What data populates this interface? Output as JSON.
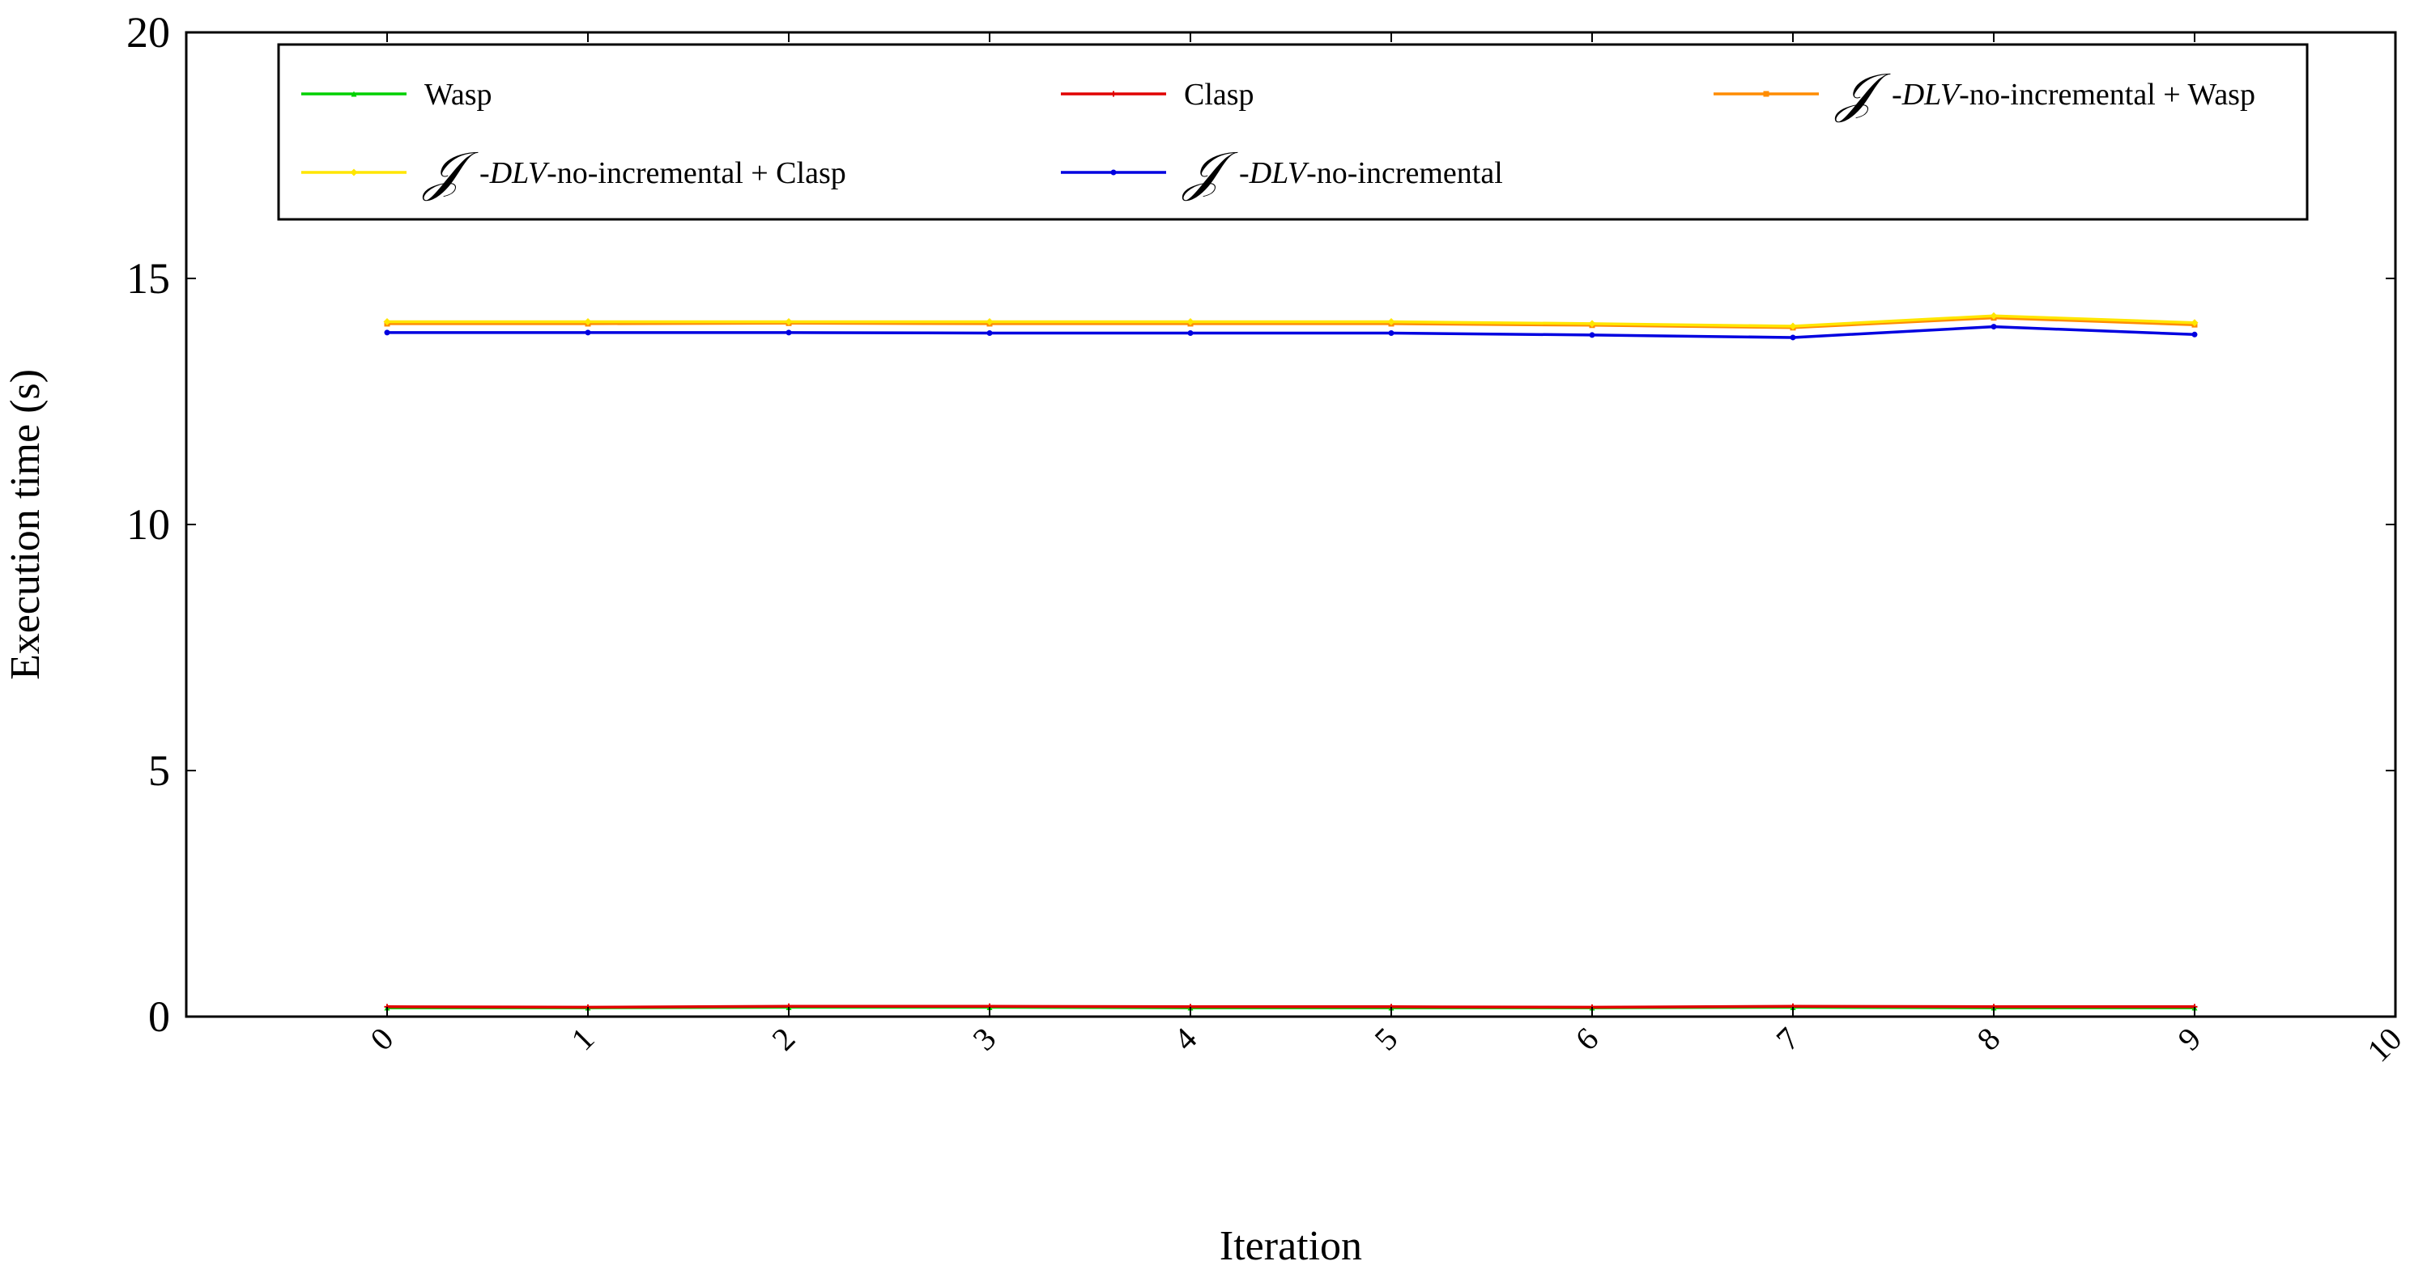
{
  "chart_data": {
    "type": "line",
    "title": "",
    "xlabel": "Iteration",
    "ylabel": "Execution time (s)",
    "xlim": [
      -1,
      10
    ],
    "ylim": [
      0,
      20
    ],
    "x_ticks": [
      "0",
      "1",
      "2",
      "3",
      "4",
      "5",
      "6",
      "7",
      "8",
      "9",
      "10"
    ],
    "y_ticks": [
      "0",
      "5",
      "10",
      "15",
      "20"
    ],
    "legend_position": "top",
    "x": [
      0,
      1,
      2,
      3,
      4,
      5,
      6,
      7,
      8,
      9
    ],
    "series": [
      {
        "key": "wasp",
        "name": "Wasp",
        "color": "#00d000",
        "marker": "triangle",
        "values": [
          0.18,
          0.18,
          0.19,
          0.19,
          0.18,
          0.18,
          0.18,
          0.19,
          0.18,
          0.18
        ]
      },
      {
        "key": "clasp",
        "name": "Clasp",
        "color": "#e00000",
        "marker": "plus",
        "values": [
          0.2,
          0.19,
          0.21,
          0.21,
          0.2,
          0.2,
          0.19,
          0.21,
          0.2,
          0.2
        ]
      },
      {
        "key": "idlv_wasp",
        "name": "𝒥 -DLV-no-incremental + Wasp",
        "name_parts": {
          "script": "𝒥",
          "ital": "-DLV",
          "rest": "-no-incremental + Wasp"
        },
        "color": "#ff8c00",
        "marker": "square",
        "values": [
          14.08,
          14.08,
          14.09,
          14.08,
          14.08,
          14.08,
          14.05,
          14.0,
          14.2,
          14.06
        ]
      },
      {
        "key": "idlv_clasp",
        "name": "𝒥 -DLV-no-incremental + Clasp",
        "name_parts": {
          "script": "𝒥",
          "ital": "-DLV",
          "rest": "-no-incremental + Clasp"
        },
        "color": "#ffe600",
        "marker": "diamond",
        "values": [
          14.12,
          14.12,
          14.12,
          14.12,
          14.12,
          14.12,
          14.08,
          14.03,
          14.24,
          14.1
        ]
      },
      {
        "key": "idlv",
        "name": "𝒥 -DLV-no-incremental",
        "name_parts": {
          "script": "𝒥",
          "ital": "-DLV",
          "rest": "-no-incremental"
        },
        "color": "#0000e0",
        "marker": "circle",
        "values": [
          13.9,
          13.9,
          13.9,
          13.89,
          13.89,
          13.89,
          13.85,
          13.8,
          14.02,
          13.86
        ]
      }
    ]
  }
}
